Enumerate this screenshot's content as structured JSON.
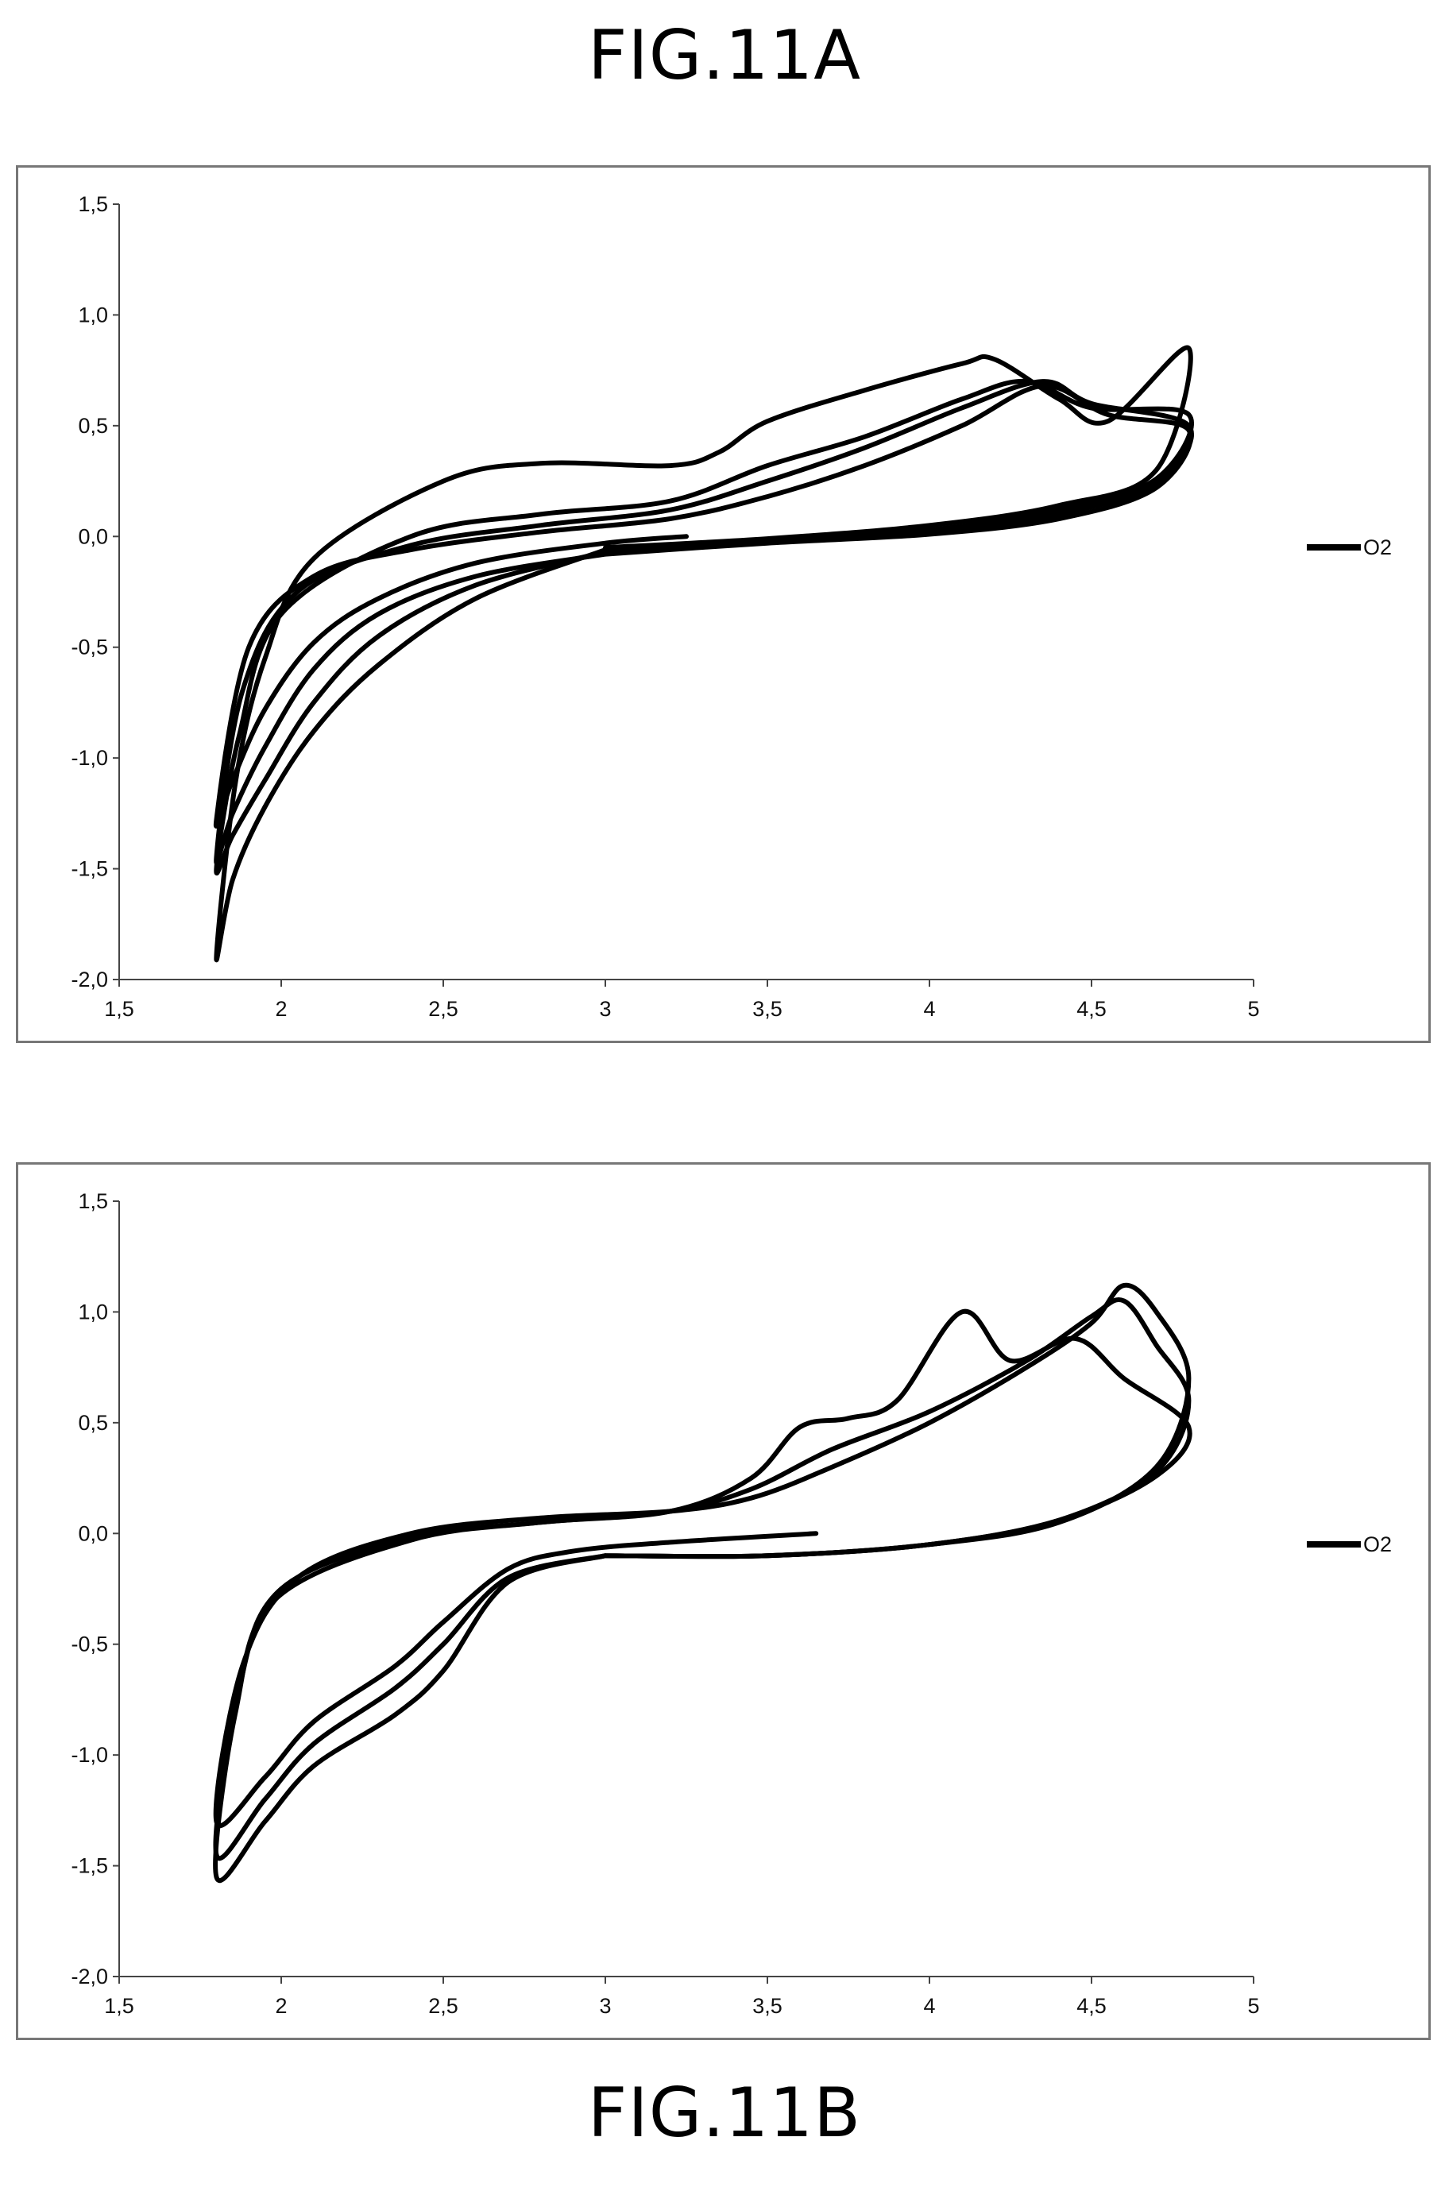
{
  "figures": [
    {
      "title": "FIG.11A"
    },
    {
      "title": "FIG.11B"
    }
  ],
  "chart_data": [
    {
      "type": "line",
      "title": "FIG.11A",
      "xlabel": "",
      "ylabel": "",
      "xlim": [
        1.5,
        5
      ],
      "ylim": [
        -2.0,
        1.5
      ],
      "x_ticks": [
        "1,5",
        "2",
        "2,5",
        "3",
        "3,5",
        "4",
        "4,5",
        "5"
      ],
      "y_ticks": [
        "1,5",
        "1,0",
        "0,5",
        "0,0",
        "-0,5",
        "-1,0",
        "-1,5",
        "-2,0"
      ],
      "legend": {
        "position": "right",
        "entries": [
          "O2"
        ]
      },
      "grid": false,
      "series": [
        {
          "name": "O2",
          "points": [
            [
              3.25,
              0.0
            ],
            [
              3.0,
              -0.03
            ],
            [
              2.6,
              -0.12
            ],
            [
              2.3,
              -0.28
            ],
            [
              2.1,
              -0.48
            ],
            [
              1.95,
              -0.78
            ],
            [
              1.85,
              -1.1
            ],
            [
              1.8,
              -1.28
            ],
            [
              1.9,
              -0.5
            ],
            [
              2.1,
              -0.18
            ],
            [
              2.4,
              -0.06
            ],
            [
              2.8,
              0.02
            ],
            [
              3.2,
              0.08
            ],
            [
              3.5,
              0.18
            ],
            [
              3.8,
              0.32
            ],
            [
              4.1,
              0.5
            ],
            [
              4.35,
              0.68
            ],
            [
              4.55,
              0.55
            ],
            [
              4.8,
              0.48
            ],
            [
              4.7,
              0.22
            ],
            [
              4.4,
              0.08
            ],
            [
              4.0,
              0.01
            ],
            [
              3.5,
              -0.03
            ],
            [
              3.0,
              -0.08
            ]
          ]
        },
        {
          "name": "O2",
          "points": [
            [
              3.0,
              -0.08
            ],
            [
              2.6,
              -0.18
            ],
            [
              2.3,
              -0.35
            ],
            [
              2.1,
              -0.6
            ],
            [
              1.95,
              -0.95
            ],
            [
              1.85,
              -1.25
            ],
            [
              1.8,
              -1.45
            ],
            [
              1.88,
              -0.7
            ],
            [
              2.05,
              -0.25
            ],
            [
              2.4,
              -0.04
            ],
            [
              2.8,
              0.05
            ],
            [
              3.2,
              0.12
            ],
            [
              3.5,
              0.25
            ],
            [
              3.8,
              0.4
            ],
            [
              4.1,
              0.58
            ],
            [
              4.35,
              0.7
            ],
            [
              4.5,
              0.6
            ],
            [
              4.8,
              0.5
            ],
            [
              4.7,
              0.24
            ],
            [
              4.4,
              0.1
            ],
            [
              4.0,
              0.02
            ],
            [
              3.5,
              -0.02
            ],
            [
              3.0,
              -0.07
            ]
          ]
        },
        {
          "name": "O2",
          "points": [
            [
              3.0,
              -0.07
            ],
            [
              2.6,
              -0.22
            ],
            [
              2.3,
              -0.45
            ],
            [
              2.1,
              -0.75
            ],
            [
              1.95,
              -1.1
            ],
            [
              1.85,
              -1.35
            ],
            [
              1.8,
              -1.5
            ],
            [
              1.87,
              -0.9
            ],
            [
              2.0,
              -0.35
            ],
            [
              2.4,
              0.0
            ],
            [
              2.8,
              0.1
            ],
            [
              3.2,
              0.16
            ],
            [
              3.5,
              0.32
            ],
            [
              3.8,
              0.45
            ],
            [
              4.1,
              0.62
            ],
            [
              4.3,
              0.7
            ],
            [
              4.5,
              0.58
            ],
            [
              4.8,
              0.55
            ],
            [
              4.7,
              0.26
            ],
            [
              4.4,
              0.12
            ],
            [
              4.0,
              0.03
            ],
            [
              3.5,
              -0.02
            ],
            [
              3.0,
              -0.06
            ]
          ]
        },
        {
          "name": "O2",
          "points": [
            [
              3.0,
              -0.06
            ],
            [
              2.6,
              -0.28
            ],
            [
              2.3,
              -0.58
            ],
            [
              2.1,
              -0.88
            ],
            [
              1.95,
              -1.22
            ],
            [
              1.85,
              -1.55
            ],
            [
              1.8,
              -1.9
            ],
            [
              1.86,
              -1.1
            ],
            [
              1.95,
              -0.55
            ],
            [
              2.1,
              -0.1
            ],
            [
              2.5,
              0.25
            ],
            [
              2.8,
              0.33
            ],
            [
              3.2,
              0.32
            ],
            [
              3.35,
              0.38
            ],
            [
              3.5,
              0.52
            ],
            [
              3.8,
              0.66
            ],
            [
              4.1,
              0.78
            ],
            [
              4.2,
              0.8
            ],
            [
              4.4,
              0.62
            ],
            [
              4.55,
              0.52
            ],
            [
              4.8,
              0.85
            ],
            [
              4.7,
              0.3
            ],
            [
              4.4,
              0.14
            ],
            [
              4.0,
              0.05
            ],
            [
              3.5,
              -0.01
            ],
            [
              3.0,
              -0.05
            ]
          ]
        }
      ]
    },
    {
      "type": "line",
      "title": "FIG.11B",
      "xlabel": "",
      "ylabel": "",
      "xlim": [
        1.5,
        5
      ],
      "ylim": [
        -2.0,
        1.5
      ],
      "x_ticks": [
        "1,5",
        "2",
        "2,5",
        "3",
        "3,5",
        "4",
        "4,5",
        "5"
      ],
      "y_ticks": [
        "1,5",
        "1,0",
        "0,5",
        "0,0",
        "-0,5",
        "-1,0",
        "-1,5",
        "-2,0"
      ],
      "legend": {
        "position": "right",
        "entries": [
          "O2"
        ]
      },
      "grid": false,
      "series": [
        {
          "name": "O2",
          "points": [
            [
              3.65,
              0.0
            ],
            [
              3.2,
              -0.04
            ],
            [
              2.9,
              -0.08
            ],
            [
              2.7,
              -0.16
            ],
            [
              2.5,
              -0.4
            ],
            [
              2.35,
              -0.6
            ],
            [
              2.1,
              -0.85
            ],
            [
              1.95,
              -1.1
            ],
            [
              1.8,
              -1.3
            ],
            [
              1.88,
              -0.6
            ],
            [
              2.05,
              -0.2
            ],
            [
              2.4,
              0.0
            ],
            [
              2.8,
              0.07
            ],
            [
              3.2,
              0.1
            ],
            [
              3.45,
              0.16
            ],
            [
              3.7,
              0.3
            ],
            [
              4.0,
              0.5
            ],
            [
              4.3,
              0.75
            ],
            [
              4.5,
              0.95
            ],
            [
              4.6,
              1.12
            ],
            [
              4.7,
              1.0
            ],
            [
              4.8,
              0.7
            ],
            [
              4.7,
              0.3
            ],
            [
              4.4,
              0.05
            ],
            [
              4.0,
              -0.05
            ],
            [
              3.5,
              -0.1
            ],
            [
              3.0,
              -0.1
            ]
          ]
        },
        {
          "name": "O2",
          "points": [
            [
              3.0,
              -0.1
            ],
            [
              2.7,
              -0.2
            ],
            [
              2.5,
              -0.5
            ],
            [
              2.35,
              -0.7
            ],
            [
              2.1,
              -0.95
            ],
            [
              1.95,
              -1.2
            ],
            [
              1.8,
              -1.45
            ],
            [
              1.87,
              -0.7
            ],
            [
              2.0,
              -0.25
            ],
            [
              2.4,
              -0.02
            ],
            [
              2.8,
              0.05
            ],
            [
              3.2,
              0.1
            ],
            [
              3.45,
              0.2
            ],
            [
              3.7,
              0.38
            ],
            [
              4.0,
              0.55
            ],
            [
              4.3,
              0.78
            ],
            [
              4.5,
              0.98
            ],
            [
              4.6,
              1.05
            ],
            [
              4.7,
              0.85
            ],
            [
              4.8,
              0.6
            ],
            [
              4.7,
              0.28
            ],
            [
              4.4,
              0.06
            ],
            [
              4.0,
              -0.05
            ],
            [
              3.5,
              -0.1
            ],
            [
              3.0,
              -0.1
            ]
          ]
        },
        {
          "name": "O2",
          "points": [
            [
              3.0,
              -0.1
            ],
            [
              2.7,
              -0.22
            ],
            [
              2.5,
              -0.62
            ],
            [
              2.35,
              -0.82
            ],
            [
              2.1,
              -1.05
            ],
            [
              1.95,
              -1.3
            ],
            [
              1.8,
              -1.55
            ],
            [
              1.86,
              -0.8
            ],
            [
              1.98,
              -0.3
            ],
            [
              2.4,
              -0.03
            ],
            [
              2.8,
              0.05
            ],
            [
              3.2,
              0.1
            ],
            [
              3.45,
              0.25
            ],
            [
              3.6,
              0.48
            ],
            [
              3.75,
              0.52
            ],
            [
              3.9,
              0.6
            ],
            [
              4.1,
              1.0
            ],
            [
              4.25,
              0.78
            ],
            [
              4.45,
              0.88
            ],
            [
              4.6,
              0.7
            ],
            [
              4.8,
              0.48
            ],
            [
              4.7,
              0.26
            ],
            [
              4.4,
              0.06
            ],
            [
              4.0,
              -0.05
            ],
            [
              3.5,
              -0.1
            ],
            [
              3.0,
              -0.1
            ]
          ]
        }
      ]
    }
  ]
}
